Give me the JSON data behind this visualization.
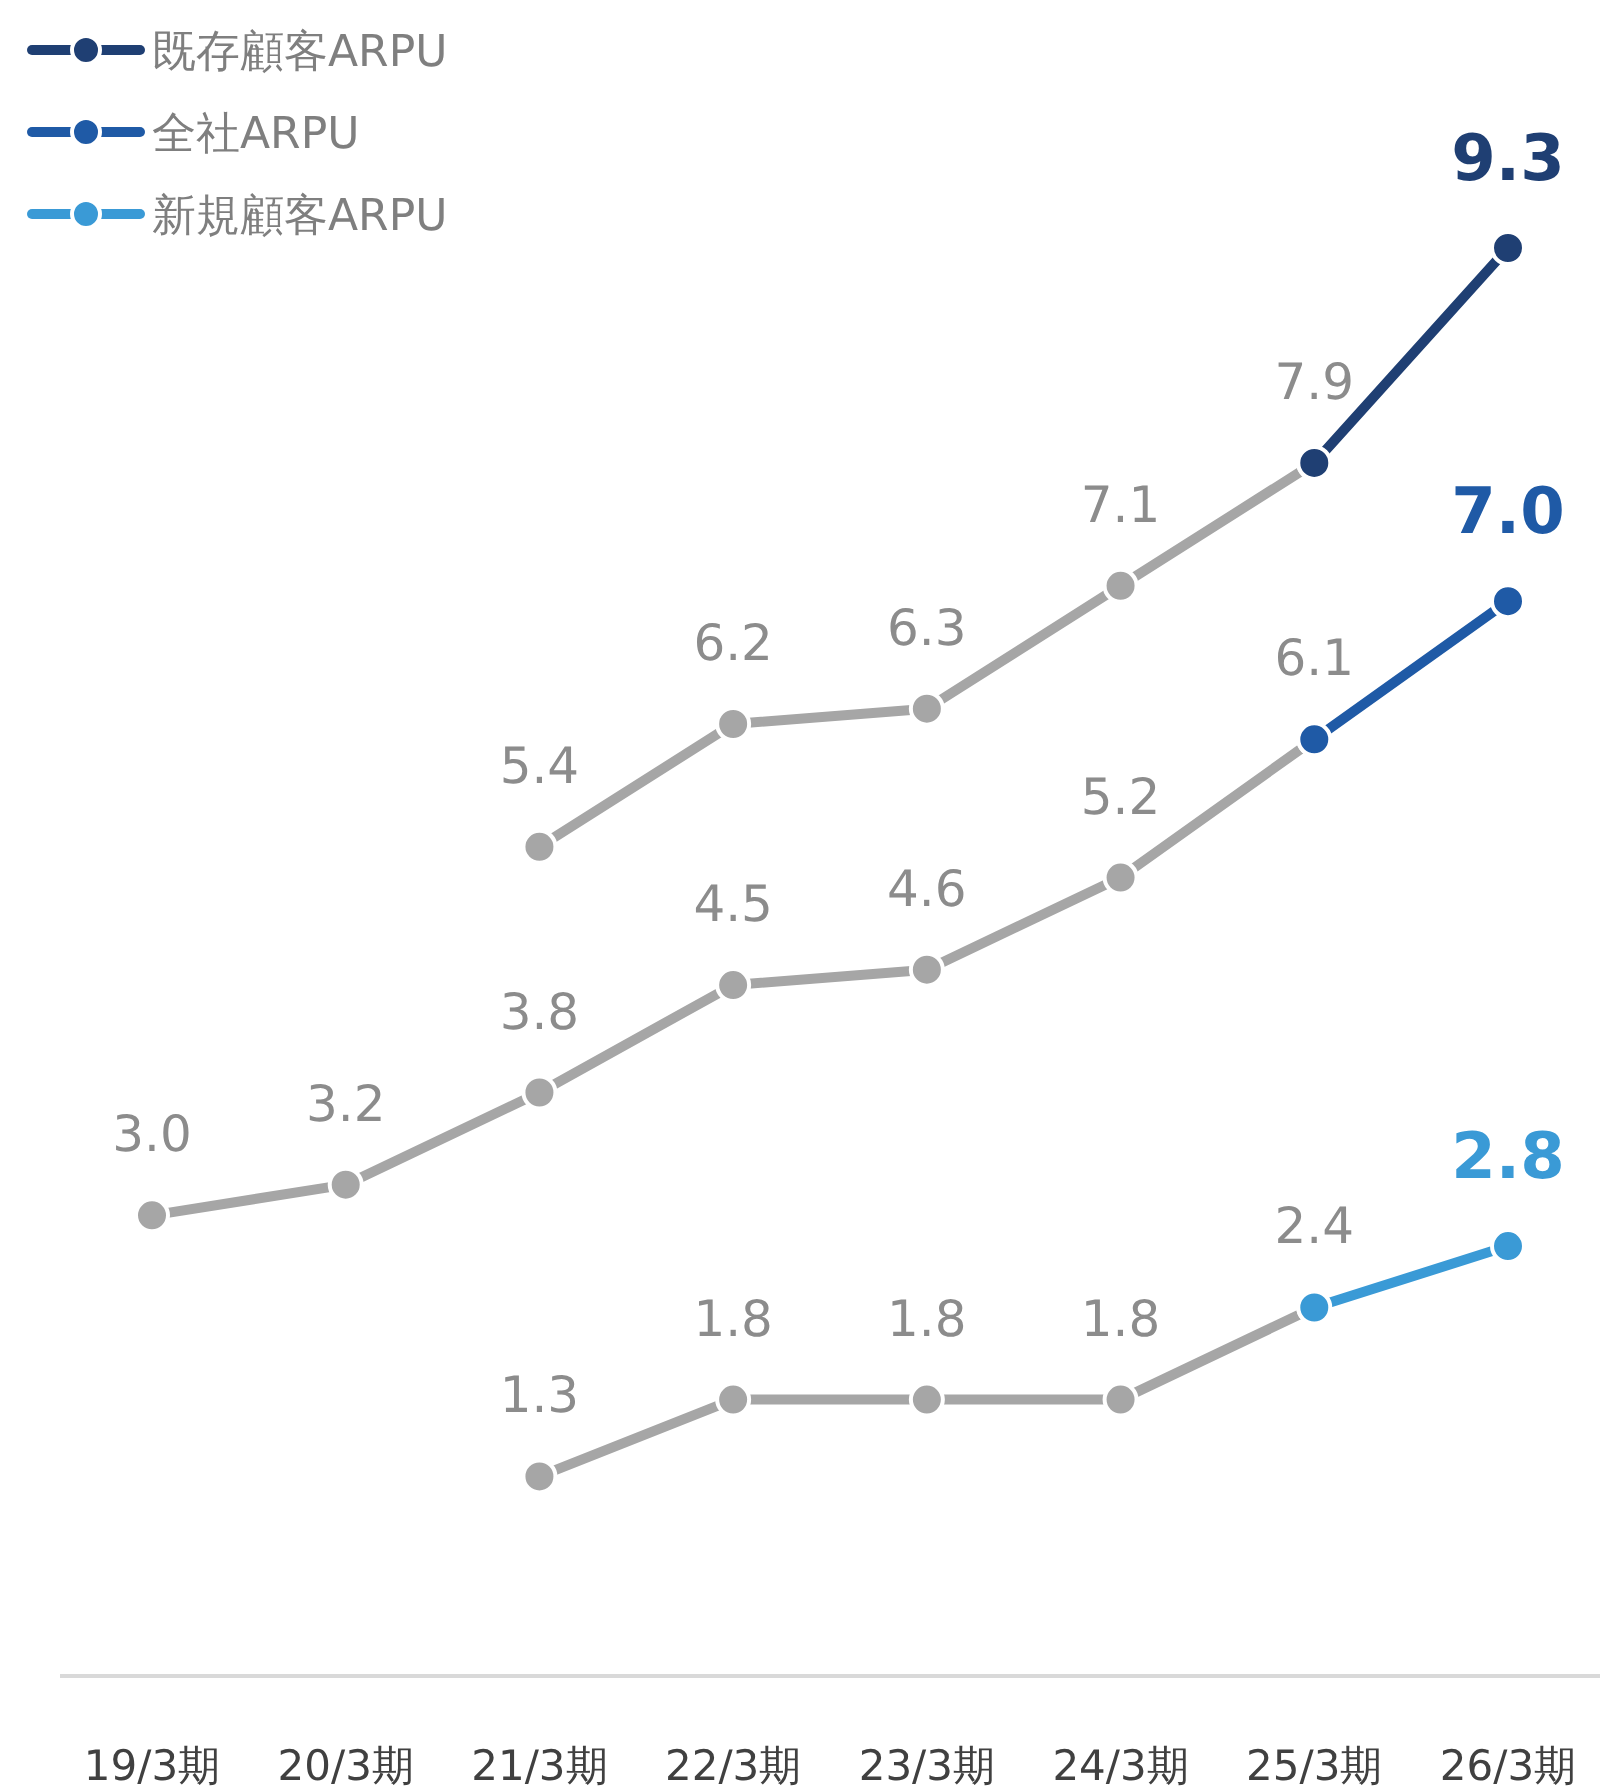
{
  "chart_data": {
    "type": "line",
    "categories": [
      "19/3期",
      "20/3期",
      "21/3期",
      "22/3期",
      "23/3期",
      "24/3期",
      "25/3期",
      "26/3期"
    ],
    "series": [
      {
        "color": "#a6a6a6",
        "values": [
          null,
          null,
          5.4,
          6.2,
          6.3,
          7.1,
          7.9,
          null
        ],
        "value_labels": [
          null,
          null,
          "5.4",
          "6.2",
          "6.3",
          "7.1",
          "7.9",
          null
        ]
      },
      {
        "color": "#a6a6a6",
        "values": [
          3.0,
          3.2,
          3.8,
          4.5,
          4.6,
          5.2,
          6.1,
          null
        ],
        "value_labels": [
          "3.0",
          "3.2",
          "3.8",
          "4.5",
          "4.6",
          "5.2",
          "6.1",
          null
        ]
      },
      {
        "color": "#a6a6a6",
        "values": [
          null,
          null,
          1.3,
          1.8,
          1.8,
          1.8,
          2.4,
          null
        ],
        "value_labels": [
          null,
          null,
          "1.3",
          "1.8",
          "1.8",
          "1.8",
          "2.4",
          null
        ]
      },
      {
        "name": "既存顧客ARPU",
        "color": "#1f3f73",
        "values": [
          null,
          null,
          null,
          null,
          null,
          null,
          7.9,
          9.3
        ],
        "value_labels": [
          null,
          null,
          null,
          null,
          null,
          null,
          null,
          "9.3"
        ]
      },
      {
        "name": "全社ARPU",
        "color": "#1f5aa6",
        "values": [
          null,
          null,
          null,
          null,
          null,
          null,
          6.1,
          7.0
        ],
        "value_labels": [
          null,
          null,
          null,
          null,
          null,
          null,
          null,
          "7.0"
        ]
      },
      {
        "name": "新規顧客ARPU",
        "color": "#3a9ad6",
        "values": [
          null,
          null,
          null,
          null,
          null,
          null,
          2.4,
          2.8
        ],
        "value_labels": [
          null,
          null,
          null,
          null,
          null,
          null,
          null,
          "2.8"
        ]
      }
    ],
    "marker": "circle",
    "legend": "top left"
  }
}
